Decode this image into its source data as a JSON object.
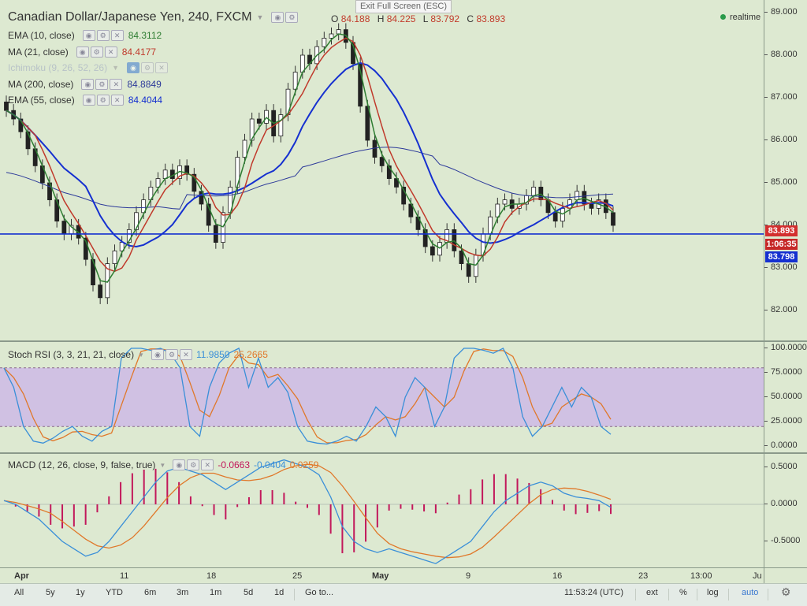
{
  "header": {
    "title": "Canadian Dollar/Japanese Yen, 240, FXCM",
    "fullscreen_tip": "Exit Full Screen (ESC)",
    "realtime": "realtime",
    "ohlc": {
      "o_label": "O",
      "o": "84.188",
      "h_label": "H",
      "h": "84.225",
      "l_label": "L",
      "l": "83.792",
      "c_label": "C",
      "c": "83.893"
    }
  },
  "indicators": [
    {
      "label": "EMA (10, close)",
      "value": "84.3112",
      "color": "#2e7d32"
    },
    {
      "label": "MA (21, close)",
      "value": "84.4177",
      "color": "#c0392b"
    },
    {
      "label": "Ichimoku (9, 26, 52, 26)",
      "value": "",
      "color": "#9aa4c0"
    },
    {
      "label": "MA (200, close)",
      "value": "84.8849",
      "color": "#2d3a9a"
    },
    {
      "label": "EMA (55, close)",
      "value": "84.4044",
      "color": "#1530d0"
    }
  ],
  "price_axis": [
    "89.000",
    "88.000",
    "87.000",
    "86.000",
    "85.000",
    "84.000",
    "83.000",
    "82.000"
  ],
  "price_badges": {
    "last": "83.893",
    "countdown": "1:06:35",
    "line": "83.798"
  },
  "stoch": {
    "label": "Stoch RSI (3, 3, 21, 21, close)",
    "k": "11.9850",
    "d": "25.2665",
    "axis": [
      "100.0000",
      "75.0000",
      "50.0000",
      "25.0000",
      "0.0000"
    ]
  },
  "macd": {
    "label": "MACD (12, 26, close, 9, false, true)",
    "hist": "-0.0663",
    "macd": "-0.0404",
    "signal": "0.0259",
    "axis": [
      "0.5000",
      "0.0000",
      "-0.5000"
    ]
  },
  "time_axis": [
    "Apr",
    "11",
    "18",
    "25",
    "May",
    "9",
    "16",
    "23",
    "13:00",
    "Ju"
  ],
  "toolbar": {
    "ranges": [
      "All",
      "5y",
      "1y",
      "YTD",
      "6m",
      "3m",
      "1m",
      "5d",
      "1d"
    ],
    "goto": "Go to...",
    "clock": "11:53:24 (UTC)",
    "ext": "ext",
    "pct": "%",
    "log": "log",
    "auto": "auto"
  },
  "colors": {
    "background": "#dde9d1",
    "stoch_band": "#d0c1e3",
    "ema10": "#2e7d32",
    "ma21": "#c0392b",
    "ema55": "#1530d0",
    "ma200": "#2d3a9a",
    "hline": "#1530d0",
    "stoch_k": "#3a8fd8",
    "stoch_d": "#e0782a",
    "macd_line": "#3a8fd8",
    "signal": "#e0782a",
    "hist": "#c2185b",
    "accent": "#3a78d0"
  },
  "chart_data": {
    "type": "line",
    "price_range": [
      81.5,
      89.1
    ],
    "x_dates": [
      "Apr",
      "11",
      "18",
      "25",
      "May",
      "9",
      "16",
      "23"
    ],
    "hline": 83.798
  }
}
